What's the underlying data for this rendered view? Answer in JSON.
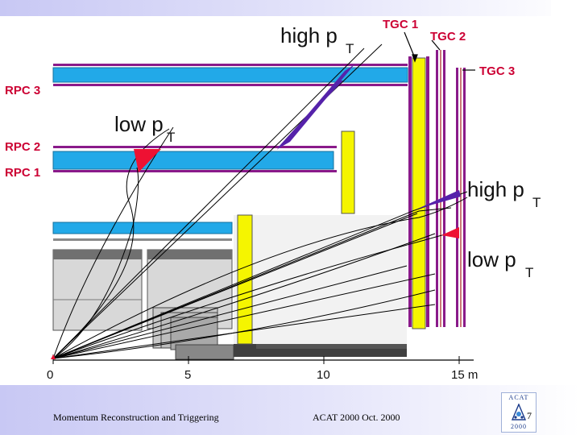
{
  "labels": {
    "tgc1": "TGC 1",
    "tgc2": "TGC 2",
    "tgc3": "TGC 3",
    "rpc3": "RPC 3",
    "rpc2": "RPC 2",
    "rpc1": "RPC 1",
    "high_pt": "high p",
    "low_pt": "low p",
    "subscript": "T"
  },
  "axis": {
    "ticks": [
      "0",
      "5",
      "10",
      "15 m"
    ]
  },
  "footer": {
    "left": "Momentum Reconstruction and Triggering",
    "middle": "ACAT 2000  Oct. 2000",
    "page": "7",
    "logo_top": "ACAT",
    "logo_year": "2000"
  },
  "colors": {
    "rpc_chamber": "#22a9e8",
    "tgc_yellow": "#f5f500",
    "tgc_purple": "#8a1a8a",
    "high_pt_cone": "#5522aa",
    "low_pt_cone": "#ee1133",
    "label_red": "#cc0033"
  }
}
